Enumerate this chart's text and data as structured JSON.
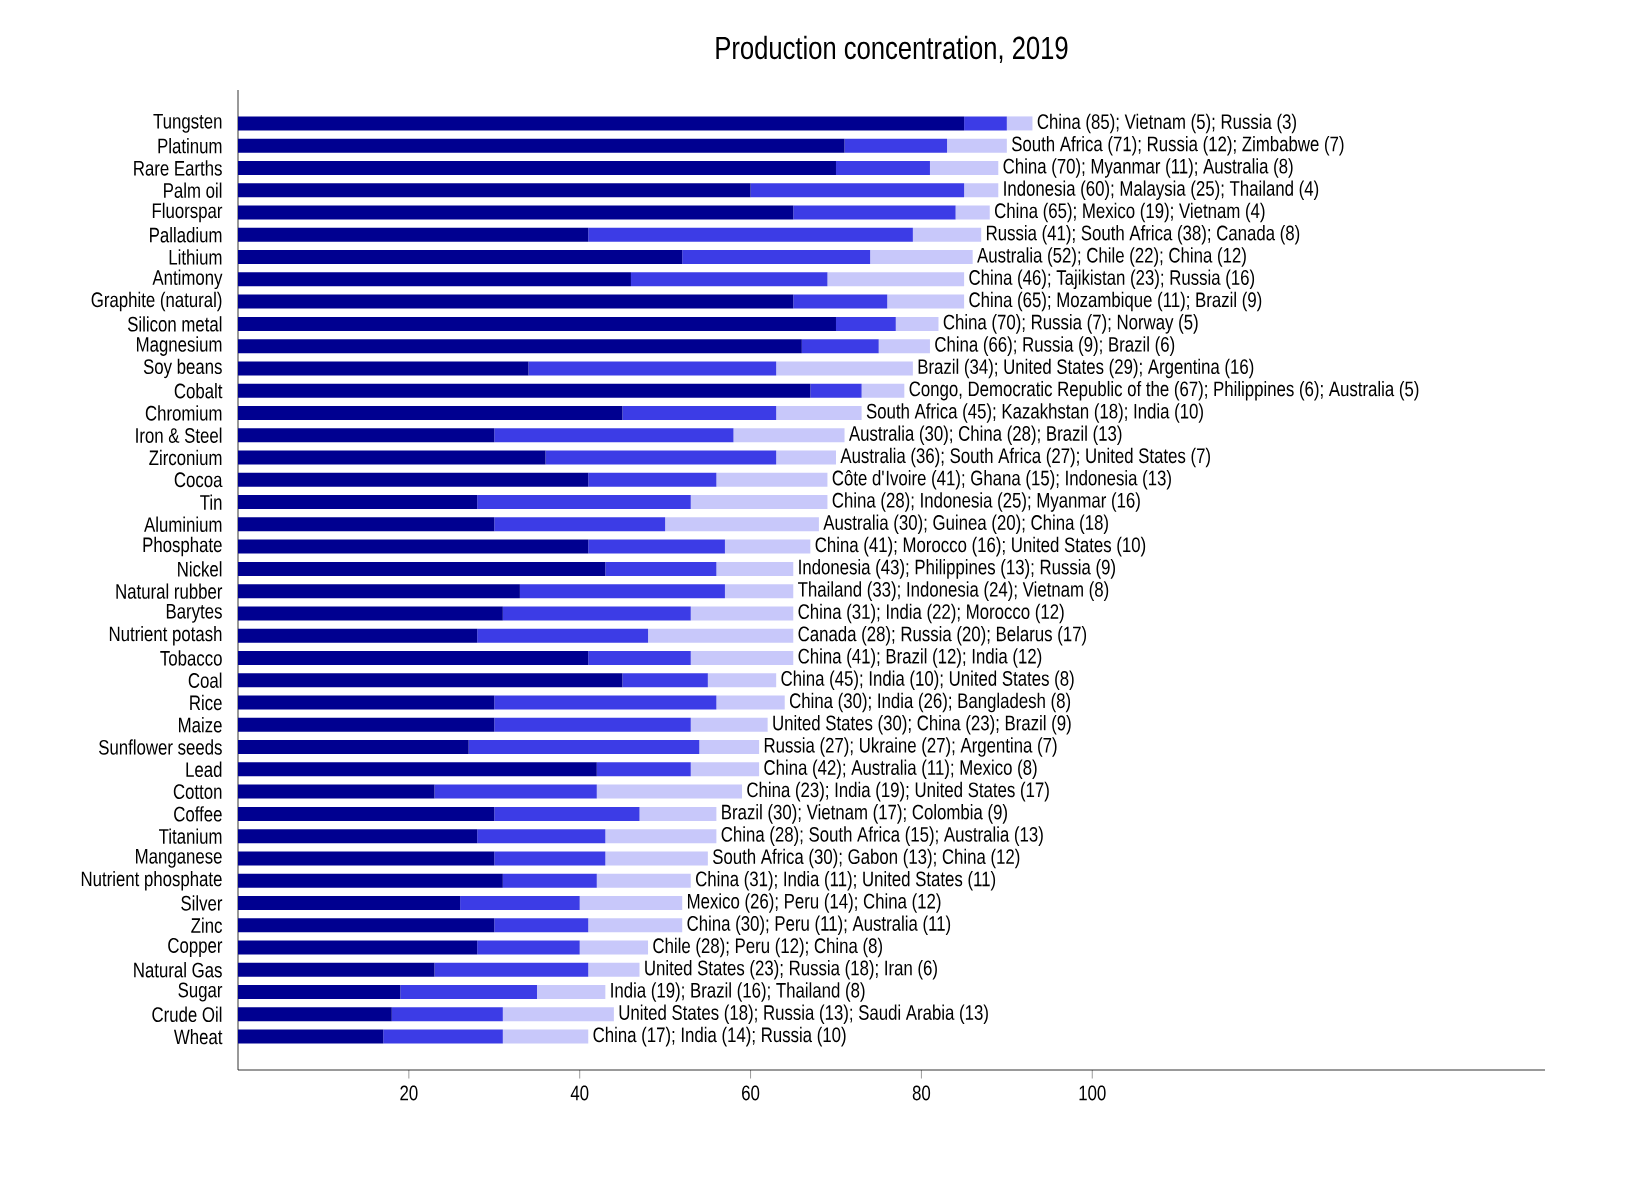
{
  "chart_data": {
    "type": "bar",
    "orientation": "horizontal",
    "stacked": true,
    "title": "Production concentration, 2019",
    "categories": [
      "Tungsten",
      "Platinum",
      "Rare Earths",
      "Palm oil",
      "Fluorspar",
      "Palladium",
      "Lithium",
      "Antimony",
      "Graphite (natural)",
      "Silicon metal",
      "Magnesium",
      "Soy beans",
      "Cobalt",
      "Chromium",
      "Iron & Steel",
      "Zirconium",
      "Cocoa",
      "Tin",
      "Aluminium",
      "Phosphate",
      "Nickel",
      "Natural rubber",
      "Barytes",
      "Nutrient potash",
      "Tobacco",
      "Coal",
      "Rice",
      "Maize",
      "Sunflower seeds",
      "Lead",
      "Cotton",
      "Coffee",
      "Titanium",
      "Manganese",
      "Nutrient phosphate",
      "Silver",
      "Zinc",
      "Copper",
      "Natural Gas",
      "Sugar",
      "Crude Oil",
      "Wheat"
    ],
    "series": [
      {
        "color": "#000090",
        "values": [
          85,
          71,
          70,
          60,
          65,
          41,
          52,
          46,
          65,
          70,
          66,
          34,
          67,
          45,
          30,
          36,
          41,
          28,
          30,
          41,
          43,
          33,
          31,
          28,
          41,
          45,
          30,
          30,
          27,
          42,
          23,
          30,
          28,
          30,
          31,
          26,
          30,
          28,
          23,
          19,
          18,
          17
        ]
      },
      {
        "color": "#3c3ce6",
        "values": [
          5,
          12,
          11,
          25,
          19,
          38,
          22,
          23,
          11,
          7,
          9,
          29,
          6,
          18,
          28,
          27,
          15,
          25,
          20,
          16,
          13,
          24,
          22,
          20,
          12,
          10,
          26,
          23,
          27,
          11,
          19,
          17,
          15,
          13,
          11,
          14,
          11,
          12,
          18,
          16,
          13,
          14
        ]
      },
      {
        "color": "#c8c8fa",
        "values": [
          3,
          7,
          8,
          4,
          4,
          8,
          12,
          16,
          9,
          5,
          6,
          16,
          5,
          10,
          13,
          7,
          13,
          16,
          18,
          10,
          9,
          8,
          12,
          17,
          12,
          8,
          8,
          9,
          7,
          8,
          17,
          9,
          13,
          12,
          11,
          12,
          11,
          8,
          6,
          8,
          13,
          10
        ]
      }
    ],
    "totals": [
      "China (85); Vietnam (5); Russia (3)",
      "South Africa (71); Russia (12); Zimbabwe (7)",
      "China (70); Myanmar (11); Australia (8)",
      "Indonesia (60); Malaysia (25); Thailand (4)",
      "China (65); Mexico (19); Vietnam (4)",
      "Russia (41); South Africa (38); Canada (8)",
      "Australia (52); Chile (22); China (12)",
      "China (46); Tajikistan (23); Russia (16)",
      "China (65); Mozambique (11); Brazil (9)",
      "China (70); Russia (7); Norway (5)",
      "China (66); Russia (9); Brazil (6)",
      "Brazil (34); United States (29); Argentina (16)",
      "Congo, Democratic Republic of the (67); Philippines (6); Australia (5)",
      "South Africa (45); Kazakhstan (18); India (10)",
      "Australia (30); China (28); Brazil (13)",
      "Australia (36); South Africa (27); United States (7)",
      "Côte d'Ivoire (41); Ghana (15); Indonesia (13)",
      "China (28); Indonesia (25); Myanmar (16)",
      "Australia (30); Guinea (20); China (18)",
      "China (41); Morocco (16); United States (10)",
      "Indonesia (43); Philippines (13); Russia (9)",
      "Thailand (33); Indonesia (24); Vietnam (8)",
      "China (31); India (22); Morocco (12)",
      "Canada (28); Russia (20); Belarus (17)",
      "China (41); Brazil (12); India (12)",
      "China (45); India (10); United States (8)",
      "China (30); India (26); Bangladesh (8)",
      "United States (30); China (23); Brazil (9)",
      "Russia (27); Ukraine (27); Argentina (7)",
      "China (42); Australia (11); Mexico (8)",
      "China (23); India (19); United States (17)",
      "Brazil (30); Vietnam (17); Colombia (9)",
      "China (28); South Africa (15); Australia (13)",
      "South Africa (30); Gabon (13); China (12)",
      "China (31); India (11); United States (11)",
      "Mexico (26); Peru (14); China (12)",
      "China (30); Peru (11); Australia (11)",
      "Chile (28); Peru (12); China (8)",
      "United States (23); Russia (18); Iran (6)",
      "India (19); Brazil (16); Thailand (8)",
      "United States (18); Russia (13); Saudi Arabia (13)",
      "China (17); India (14); Russia (10)"
    ],
    "xlim": [
      0,
      153
    ],
    "xticks": [
      20,
      40,
      60,
      80,
      100
    ]
  }
}
